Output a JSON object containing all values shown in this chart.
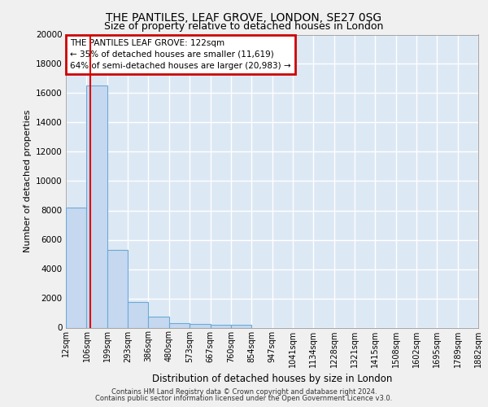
{
  "title1": "THE PANTILES, LEAF GROVE, LONDON, SE27 0SG",
  "title2": "Size of property relative to detached houses in London",
  "xlabel": "Distribution of detached houses by size in London",
  "ylabel": "Number of detached properties",
  "footer1": "Contains HM Land Registry data © Crown copyright and database right 2024.",
  "footer2": "Contains public sector information licensed under the Open Government Licence v3.0.",
  "bin_edges": [
    12,
    106,
    199,
    293,
    386,
    480,
    573,
    667,
    760,
    854,
    947,
    1041,
    1134,
    1228,
    1321,
    1415,
    1508,
    1602,
    1695,
    1789,
    1882
  ],
  "bar_heights": [
    8200,
    16500,
    5300,
    1750,
    750,
    300,
    230,
    200,
    175,
    0,
    0,
    0,
    0,
    0,
    0,
    0,
    0,
    0,
    0,
    0
  ],
  "bar_color": "#c5d8f0",
  "bar_edge_color": "#6aaad4",
  "red_line_x": 122,
  "red_line_color": "#dd0000",
  "ylim": [
    0,
    20000
  ],
  "yticks": [
    0,
    2000,
    4000,
    6000,
    8000,
    10000,
    12000,
    14000,
    16000,
    18000,
    20000
  ],
  "annotation_title": "THE PANTILES LEAF GROVE: 122sqm",
  "annotation_line1": "← 35% of detached houses are smaller (11,619)",
  "annotation_line2": "64% of semi-detached houses are larger (20,983) →",
  "annotation_box_color": "#ffffff",
  "annotation_border_color": "#cc0000",
  "plot_bg_color": "#dde8f5",
  "fig_bg_color": "#f0f0f0",
  "grid_color": "#ffffff"
}
